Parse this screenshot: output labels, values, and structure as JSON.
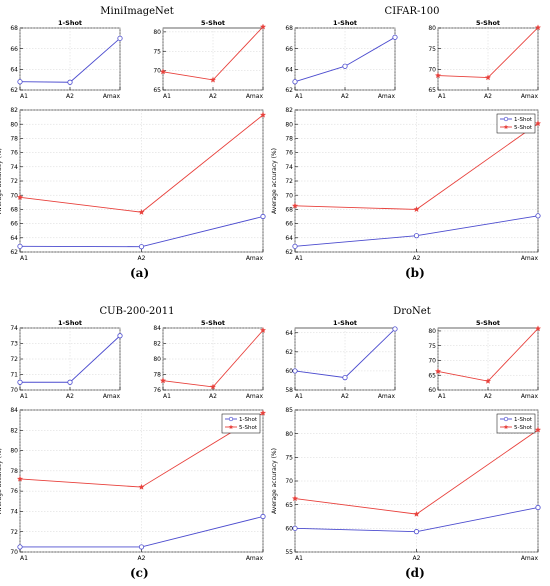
{
  "chart_data": [
    {
      "type": "line",
      "panel_label": "(a)",
      "title": "MiniImageNet",
      "categories": [
        "A1",
        "A2",
        "Amax"
      ],
      "small_1shot": {
        "title": "1-Shot",
        "ylim": [
          62,
          68
        ],
        "ticks": [
          62,
          64,
          66,
          68
        ],
        "values": [
          62.8,
          62.75,
          67.0
        ]
      },
      "small_5shot": {
        "title": "5-Shot",
        "ylim": [
          65,
          81
        ],
        "ticks": [
          65,
          70,
          75,
          80
        ],
        "values": [
          69.7,
          67.6,
          81.3
        ]
      },
      "main": {
        "ylabel": "Average accuracy (%)",
        "ylim": [
          62,
          82
        ],
        "ticks": [
          62,
          64,
          66,
          68,
          70,
          72,
          74,
          76,
          78,
          80,
          82
        ],
        "legend": null
      },
      "series": [
        {
          "name": "1-Shot",
          "color": "#4c4ccf",
          "marker": "circle",
          "values": [
            62.8,
            62.75,
            67.0
          ]
        },
        {
          "name": "5-Shot",
          "color": "#e8413c",
          "marker": "star",
          "values": [
            69.7,
            67.6,
            81.3
          ]
        }
      ]
    },
    {
      "type": "line",
      "panel_label": "(b)",
      "title": "CIFAR-100",
      "categories": [
        "A1",
        "A2",
        "Amax"
      ],
      "small_1shot": {
        "title": "1-Shot",
        "ylim": [
          62,
          68
        ],
        "ticks": [
          62,
          64,
          66,
          68
        ],
        "values": [
          62.8,
          64.3,
          67.1
        ]
      },
      "small_5shot": {
        "title": "5-Shot",
        "ylim": [
          65,
          80
        ],
        "ticks": [
          65,
          70,
          75,
          80
        ],
        "values": [
          68.5,
          68.0,
          80.1
        ]
      },
      "main": {
        "ylabel": "Average accuracy (%)",
        "ylim": [
          62,
          82
        ],
        "ticks": [
          62,
          64,
          66,
          68,
          70,
          72,
          74,
          76,
          78,
          80,
          82
        ],
        "legend": "top-right"
      },
      "series": [
        {
          "name": "1-Shot",
          "color": "#4c4ccf",
          "marker": "circle",
          "values": [
            62.8,
            64.3,
            67.1
          ]
        },
        {
          "name": "5-Shot",
          "color": "#e8413c",
          "marker": "star",
          "values": [
            68.5,
            68.0,
            80.1
          ]
        }
      ]
    },
    {
      "type": "line",
      "panel_label": "(c)",
      "title": "CUB-200-2011",
      "categories": [
        "A1",
        "A2",
        "Amax"
      ],
      "small_1shot": {
        "title": "1-Shot",
        "ylim": [
          70,
          74
        ],
        "ticks": [
          70,
          71,
          72,
          73,
          74
        ],
        "values": [
          70.5,
          70.5,
          73.5
        ]
      },
      "small_5shot": {
        "title": "5-Shot",
        "ylim": [
          76,
          84
        ],
        "ticks": [
          76,
          78,
          80,
          82,
          84
        ],
        "values": [
          77.2,
          76.4,
          83.7
        ]
      },
      "main": {
        "ylabel": "Average accuracy (%)",
        "ylim": [
          70,
          84
        ],
        "ticks": [
          70,
          72,
          74,
          76,
          78,
          80,
          82,
          84
        ],
        "legend": "top-right"
      },
      "series": [
        {
          "name": "1-Shot",
          "color": "#4c4ccf",
          "marker": "circle",
          "values": [
            70.5,
            70.5,
            73.5
          ]
        },
        {
          "name": "5-Shot",
          "color": "#e8413c",
          "marker": "star",
          "values": [
            77.2,
            76.4,
            83.7
          ]
        }
      ]
    },
    {
      "type": "line",
      "panel_label": "(d)",
      "title": "DroNet",
      "categories": [
        "A1",
        "A2",
        "Amax"
      ],
      "small_1shot": {
        "title": "1-Shot",
        "ylim": [
          58,
          64.5
        ],
        "ticks": [
          58,
          60,
          62,
          64
        ],
        "values": [
          60.0,
          59.3,
          64.4
        ]
      },
      "small_5shot": {
        "title": "5-Shot",
        "ylim": [
          60,
          81
        ],
        "ticks": [
          60,
          65,
          70,
          75,
          80
        ],
        "values": [
          66.3,
          63.0,
          80.8
        ]
      },
      "main": {
        "ylabel": "Average accuracy (%)",
        "ylim": [
          55,
          85
        ],
        "ticks": [
          55,
          60,
          65,
          70,
          75,
          80,
          85
        ],
        "legend": "top-right"
      },
      "series": [
        {
          "name": "1-Shot",
          "color": "#4c4ccf",
          "marker": "circle",
          "values": [
            60.0,
            59.3,
            64.4
          ]
        },
        {
          "name": "5-Shot",
          "color": "#e8413c",
          "marker": "star",
          "values": [
            66.3,
            63.0,
            80.8
          ]
        }
      ]
    }
  ]
}
